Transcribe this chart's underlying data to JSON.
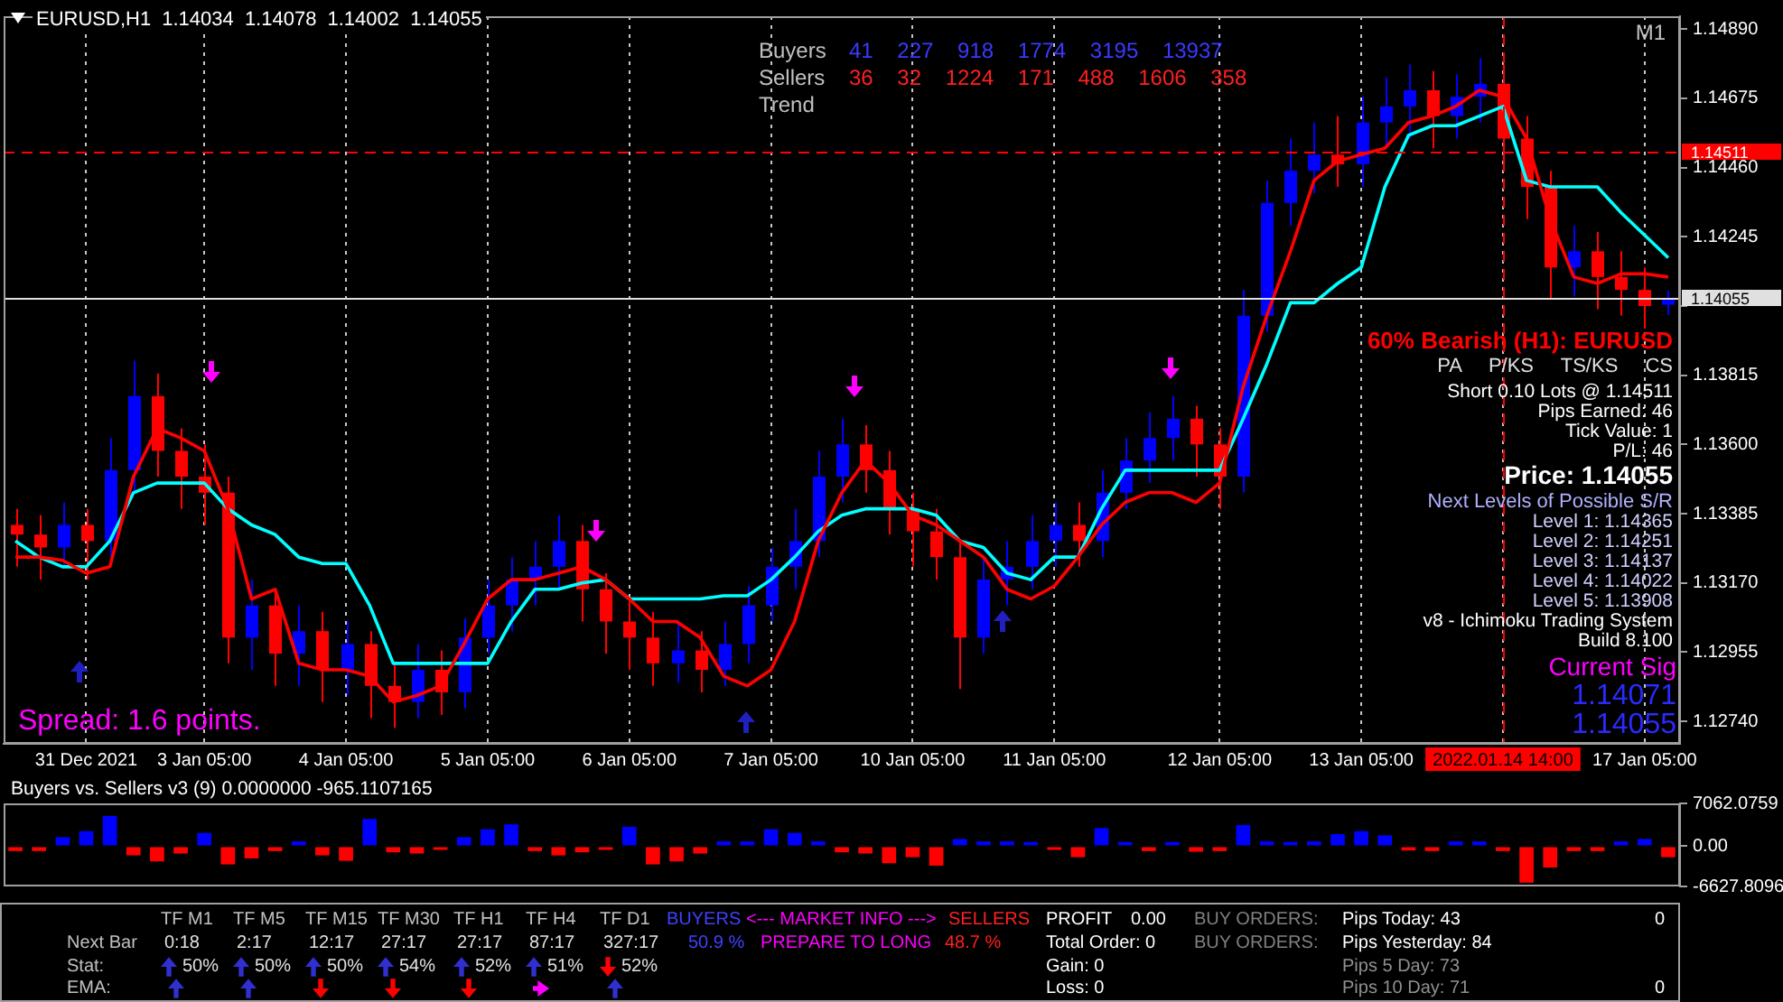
{
  "chart_data": [
    {
      "type": "candlestick",
      "title": "EURUSD,H1 1.14034 1.14078 1.14002 1.14055",
      "categories": [
        null,
        null,
        null,
        "31 Dec 2021",
        null,
        null,
        null,
        null,
        "3 Jan 05:00",
        null,
        null,
        null,
        null,
        null,
        "4 Jan 05:00",
        null,
        null,
        null,
        null,
        null,
        "5 Jan 05:00",
        null,
        null,
        null,
        null,
        null,
        "6 Jan 05:00",
        null,
        null,
        null,
        null,
        null,
        "7 Jan 05:00",
        null,
        null,
        null,
        null,
        null,
        "10 Jan 05:00",
        null,
        null,
        null,
        null,
        null,
        "11 Jan 05:00",
        null,
        null,
        null,
        null,
        null,
        null,
        "12 Jan 05:00",
        null,
        null,
        null,
        null,
        null,
        "13 Jan 05:00",
        null,
        null,
        null,
        null,
        null,
        "2022.01.14 14:00",
        null,
        null,
        null,
        null,
        null,
        "17 Jan 05:00",
        null
      ],
      "ohlc": [
        [
          1.1335,
          1.134,
          1.1322,
          1.1332
        ],
        [
          1.1332,
          1.1338,
          1.1318,
          1.1328
        ],
        [
          1.1328,
          1.1342,
          1.1322,
          1.1335
        ],
        [
          1.1335,
          1.134,
          1.1318,
          1.133
        ],
        [
          1.133,
          1.1362,
          1.1325,
          1.1352
        ],
        [
          1.1352,
          1.1386,
          1.1345,
          1.1375
        ],
        [
          1.1375,
          1.1382,
          1.135,
          1.1358
        ],
        [
          1.1358,
          1.1365,
          1.134,
          1.135
        ],
        [
          1.135,
          1.136,
          1.1335,
          1.1345
        ],
        [
          1.1345,
          1.135,
          1.1292,
          1.13
        ],
        [
          1.13,
          1.1318,
          1.129,
          1.131
        ],
        [
          1.131,
          1.1315,
          1.1285,
          1.1295
        ],
        [
          1.1295,
          1.131,
          1.1285,
          1.1302
        ],
        [
          1.1302,
          1.1308,
          1.128,
          1.129
        ],
        [
          1.129,
          1.1305,
          1.1282,
          1.1298
        ],
        [
          1.1298,
          1.1302,
          1.1275,
          1.1285
        ],
        [
          1.1285,
          1.1292,
          1.1272,
          1.128
        ],
        [
          1.128,
          1.1298,
          1.1275,
          1.129
        ],
        [
          1.129,
          1.1296,
          1.1276,
          1.1283
        ],
        [
          1.1283,
          1.1306,
          1.1278,
          1.13
        ],
        [
          1.13,
          1.1318,
          1.1295,
          1.131
        ],
        [
          1.131,
          1.1325,
          1.1302,
          1.1318
        ],
        [
          1.1318,
          1.133,
          1.131,
          1.1322
        ],
        [
          1.1322,
          1.1338,
          1.1315,
          1.133
        ],
        [
          1.133,
          1.1335,
          1.1305,
          1.1315
        ],
        [
          1.1315,
          1.132,
          1.1295,
          1.1305
        ],
        [
          1.1305,
          1.1312,
          1.129,
          1.13
        ],
        [
          1.13,
          1.1308,
          1.1285,
          1.1292
        ],
        [
          1.1292,
          1.1305,
          1.1286,
          1.1296
        ],
        [
          1.1296,
          1.1302,
          1.1283,
          1.129
        ],
        [
          1.129,
          1.1305,
          1.1285,
          1.1298
        ],
        [
          1.1298,
          1.1316,
          1.1292,
          1.131
        ],
        [
          1.131,
          1.1328,
          1.1305,
          1.1322
        ],
        [
          1.1322,
          1.134,
          1.1315,
          1.133
        ],
        [
          1.133,
          1.1358,
          1.1325,
          1.135
        ],
        [
          1.135,
          1.1368,
          1.1342,
          1.136
        ],
        [
          1.136,
          1.1366,
          1.1345,
          1.1352
        ],
        [
          1.1352,
          1.1358,
          1.1332,
          1.134
        ],
        [
          1.134,
          1.1345,
          1.1322,
          1.1333
        ],
        [
          1.1333,
          1.134,
          1.1318,
          1.1325
        ],
        [
          1.1325,
          1.133,
          1.1284,
          1.13
        ],
        [
          1.13,
          1.1325,
          1.1295,
          1.1318
        ],
        [
          1.1318,
          1.133,
          1.131,
          1.1322
        ],
        [
          1.1322,
          1.1338,
          1.1315,
          1.133
        ],
        [
          1.133,
          1.1342,
          1.1322,
          1.1335
        ],
        [
          1.1335,
          1.1342,
          1.1322,
          1.133
        ],
        [
          1.133,
          1.1352,
          1.1325,
          1.1345
        ],
        [
          1.1345,
          1.1362,
          1.134,
          1.1355
        ],
        [
          1.1355,
          1.137,
          1.1348,
          1.1362
        ],
        [
          1.1362,
          1.1375,
          1.1355,
          1.1368
        ],
        [
          1.1368,
          1.1372,
          1.135,
          1.136
        ],
        [
          1.136,
          1.1365,
          1.134,
          1.135
        ],
        [
          1.135,
          1.1408,
          1.1345,
          1.14
        ],
        [
          1.14,
          1.1442,
          1.1395,
          1.1435
        ],
        [
          1.1435,
          1.1455,
          1.1428,
          1.1445
        ],
        [
          1.1445,
          1.146,
          1.1438,
          1.145
        ],
        [
          1.145,
          1.1462,
          1.144,
          1.1447
        ],
        [
          1.1447,
          1.1468,
          1.144,
          1.146
        ],
        [
          1.146,
          1.1474,
          1.1452,
          1.1465
        ],
        [
          1.1465,
          1.1478,
          1.1455,
          1.147
        ],
        [
          1.147,
          1.1476,
          1.1452,
          1.1462
        ],
        [
          1.1462,
          1.1475,
          1.1455,
          1.1468
        ],
        [
          1.1468,
          1.148,
          1.146,
          1.1472
        ],
        [
          1.1472,
          1.1478,
          1.1448,
          1.1455
        ],
        [
          1.1455,
          1.1462,
          1.143,
          1.144
        ],
        [
          1.144,
          1.1445,
          1.1405,
          1.1415
        ],
        [
          1.1415,
          1.1428,
          1.1406,
          1.142
        ],
        [
          1.142,
          1.1426,
          1.1402,
          1.1412
        ],
        [
          1.1412,
          1.142,
          1.14,
          1.1408
        ],
        [
          1.1408,
          1.1415,
          1.1396,
          1.1403
        ],
        [
          1.14034,
          1.14078,
          1.14002,
          1.14055
        ]
      ],
      "colors": [
        "#ff0000",
        "#ff0000",
        "#0000ff",
        "#ff0000",
        "#0000ff",
        "#0000ff",
        "#ff0000",
        "#ff0000",
        "#ff0000",
        "#ff0000",
        "#0000ff",
        "#ff0000",
        "#0000ff",
        "#ff0000",
        "#0000ff",
        "#ff0000",
        "#ff0000",
        "#0000ff",
        "#ff0000",
        "#0000ff",
        "#0000ff",
        "#0000ff",
        "#0000ff",
        "#0000ff",
        "#ff0000",
        "#ff0000",
        "#ff0000",
        "#ff0000",
        "#0000ff",
        "#ff0000",
        "#0000ff",
        "#0000ff",
        "#0000ff",
        "#0000ff",
        "#0000ff",
        "#0000ff",
        "#ff0000",
        "#ff0000",
        "#ff0000",
        "#ff0000",
        "#ff0000",
        "#0000ff",
        "#0000ff",
        "#0000ff",
        "#0000ff",
        "#ff0000",
        "#0000ff",
        "#0000ff",
        "#0000ff",
        "#0000ff",
        "#ff0000",
        "#ff0000",
        "#0000ff",
        "#0000ff",
        "#0000ff",
        "#0000ff",
        "#ff0000",
        "#0000ff",
        "#0000ff",
        "#0000ff",
        "#ff0000",
        "#0000ff",
        "#0000ff",
        "#ff0000",
        "#ff0000",
        "#ff0000",
        "#0000ff",
        "#ff0000",
        "#ff0000",
        "#ff0000",
        "#0000ff"
      ],
      "series": [
        {
          "type": "line",
          "color": "#ff0000",
          "values": [
            1.1325,
            1.1325,
            1.1324,
            1.132,
            1.1322,
            1.135,
            1.1365,
            1.1362,
            1.1358,
            1.134,
            1.1312,
            1.1315,
            1.1292,
            1.129,
            1.129,
            1.1288,
            1.128,
            1.1282,
            1.1285,
            1.1298,
            1.1312,
            1.1318,
            1.1318,
            1.132,
            1.1322,
            1.1318,
            1.1312,
            1.1305,
            1.1305,
            1.13,
            1.1288,
            1.1285,
            1.129,
            1.1305,
            1.133,
            1.1345,
            1.1355,
            1.1348,
            1.1338,
            1.1335,
            1.133,
            1.1325,
            1.1315,
            1.1312,
            1.1316,
            1.1325,
            1.1335,
            1.1342,
            1.1345,
            1.1345,
            1.1342,
            1.1348,
            1.1378,
            1.14,
            1.142,
            1.1442,
            1.1448,
            1.145,
            1.1452,
            1.146,
            1.1462,
            1.1465,
            1.147,
            1.1468,
            1.1455,
            1.143,
            1.1412,
            1.141,
            1.1413,
            1.1413,
            1.1412
          ]
        },
        {
          "type": "line",
          "color": "#00ffff",
          "values": [
            1.133,
            1.1325,
            1.1322,
            1.1322,
            1.133,
            1.1345,
            1.1348,
            1.1348,
            1.1348,
            1.134,
            1.1335,
            1.1332,
            1.1325,
            1.1323,
            1.1323,
            1.131,
            1.1292,
            1.1292,
            1.1292,
            1.1292,
            1.1292,
            1.1305,
            1.1315,
            1.1315,
            1.1317,
            1.1318,
            1.1312,
            1.1312,
            1.1312,
            1.1312,
            1.1313,
            1.1313,
            1.1318,
            1.1325,
            1.1333,
            1.1338,
            1.134,
            1.134,
            1.134,
            1.1338,
            1.133,
            1.1328,
            1.132,
            1.1318,
            1.1325,
            1.1325,
            1.134,
            1.1352,
            1.1352,
            1.1352,
            1.1352,
            1.1352,
            1.1368,
            1.1385,
            1.1404,
            1.1404,
            1.141,
            1.1415,
            1.144,
            1.1456,
            1.1459,
            1.1459,
            1.1462,
            1.1465,
            1.1442,
            1.144,
            1.144,
            1.144,
            1.1432,
            1.1425,
            1.1418
          ]
        }
      ],
      "ylim": [
        1.1267,
        1.1493
      ],
      "yticks": [
        {
          "value": 1.1489,
          "label": "1.14890"
        },
        1.14675,
        {
          "value": 1.1446,
          "label": "1.14460"
        },
        1.14245,
        {
          "value": 1.1403,
          "label": null
        },
        1.13815,
        {
          "value": 1.136,
          "label": "1.13600"
        },
        1.13385,
        {
          "value": 1.1317,
          "label": "1.13170"
        },
        1.12955,
        {
          "value": 1.1274,
          "label": "1.12740"
        }
      ],
      "grid": "x",
      "ref_lines": [
        {
          "axis": "y",
          "value": 1.14511,
          "label": "1.14511",
          "color": "#ff0000",
          "line_style": "dashed"
        },
        {
          "axis": "y",
          "value": 1.14055,
          "label": "1.14055",
          "color": "#e0e0e0",
          "line_style": "solid"
        },
        {
          "axis": "x",
          "value": "2022.01.14 14:00",
          "color": "#ff0000",
          "line_style": "dashed"
        }
      ],
      "annotations": [
        "Spread: 1.6 points.",
        "M1",
        "Buyers",
        "41 227 918 1774 3195 13937",
        "Sellers",
        "36 32 1224 171 488 1606 358",
        "Trend",
        "60% Bearish (H1): EURUSD",
        "PA P/KS TS/KS CS",
        "Short 0.10 Lots @ 1.14511",
        "Pips Earned: 46",
        "Tick Value: 1",
        "P/L: 46",
        "Price: 1.14055",
        "Next Levels of Possible S/R",
        "Level 1: 1.14365",
        "Level 2: 1.14251",
        "Level 3: 1.14137",
        "Level 4: 1.14022",
        "Level 5: 1.13908",
        "v8 - Ichimoku Trading System",
        "Build 8.100",
        "Current Sig",
        "1.14071",
        "1.14055"
      ]
    },
    {
      "type": "bar",
      "title": "Buyers vs. Sellers v3 (9) 0.0000000 -965.1107165",
      "categories": [
        null,
        null,
        null,
        null,
        null,
        null,
        null,
        null,
        null,
        null,
        null,
        null,
        null,
        null,
        null,
        null,
        null,
        null,
        null,
        null,
        null,
        null,
        null,
        null,
        null,
        null,
        null,
        null,
        null,
        null,
        null,
        null,
        null,
        null,
        null,
        null,
        null,
        null,
        null,
        null,
        null,
        null,
        null,
        null,
        null,
        null,
        null,
        null,
        null,
        null,
        null,
        null,
        null,
        null,
        null,
        null,
        null,
        null,
        null,
        null,
        null,
        null,
        null,
        null,
        null,
        null,
        null,
        null,
        null,
        null,
        null
      ],
      "values": [
        -800,
        -800,
        1500,
        2500,
        5000,
        -1500,
        -2500,
        -1200,
        2200,
        -3000,
        -2000,
        -800,
        800,
        -1500,
        -2400,
        4500,
        -1000,
        -1200,
        -600,
        1500,
        2800,
        3600,
        -800,
        -1500,
        -1000,
        -600,
        3200,
        -3000,
        -2500,
        -1200,
        800,
        800,
        2800,
        2200,
        800,
        -1000,
        -1200,
        -2800,
        -1800,
        -3200,
        1200,
        800,
        800,
        700,
        -600,
        -1800,
        3000,
        700,
        -800,
        700,
        -900,
        -800,
        3500,
        800,
        700,
        800,
        2000,
        2500,
        1800,
        -700,
        -800,
        800,
        800,
        -800,
        -6000,
        -3500,
        -800,
        -800,
        800,
        1200,
        -1800
      ],
      "colors": [
        "#ff0000",
        "#ff0000",
        "#0000ff",
        "#0000ff",
        "#0000ff",
        "#ff0000",
        "#ff0000",
        "#ff0000",
        "#0000ff",
        "#ff0000",
        "#ff0000",
        "#ff0000",
        "#0000ff",
        "#ff0000",
        "#ff0000",
        "#0000ff",
        "#ff0000",
        "#ff0000",
        "#ff0000",
        "#0000ff",
        "#0000ff",
        "#0000ff",
        "#ff0000",
        "#ff0000",
        "#ff0000",
        "#ff0000",
        "#0000ff",
        "#ff0000",
        "#ff0000",
        "#ff0000",
        "#0000ff",
        "#0000ff",
        "#0000ff",
        "#0000ff",
        "#0000ff",
        "#ff0000",
        "#ff0000",
        "#ff0000",
        "#ff0000",
        "#ff0000",
        "#0000ff",
        "#0000ff",
        "#0000ff",
        "#0000ff",
        "#ff0000",
        "#ff0000",
        "#0000ff",
        "#0000ff",
        "#ff0000",
        "#0000ff",
        "#ff0000",
        "#ff0000",
        "#0000ff",
        "#0000ff",
        "#0000ff",
        "#0000ff",
        "#0000ff",
        "#0000ff",
        "#0000ff",
        "#ff0000",
        "#ff0000",
        "#0000ff",
        "#0000ff",
        "#ff0000",
        "#ff0000",
        "#ff0000",
        "#ff0000",
        "#ff0000",
        "#0000ff",
        "#0000ff",
        "#ff0000"
      ],
      "ylim": [
        -6627.8096,
        7062.0759
      ],
      "yticks": [
        7062.0759,
        {
          "value": 0,
          "label": "0.00"
        },
        -6627.8096
      ],
      "tick_labels": "y"
    },
    {
      "type": "other",
      "annotations": [
        "TF M1",
        "TF M5",
        "TF M15",
        "TF M30",
        "TF H1",
        "TF H4",
        "TF D1",
        "Next Bar",
        "0:18",
        "2:17",
        "12:17",
        "27:17",
        "27:17",
        "87:17",
        "327:17",
        "Stat:",
        "50%",
        "50%",
        "50%",
        "54%",
        "52%",
        "51%",
        "52%",
        "EMA:",
        "BUYERS",
        "<--- MARKET INFO --->",
        "SELLERS",
        "50.9 %",
        "PREPARE TO LONG",
        "48.7 %",
        "PROFIT",
        "0.00",
        "Total Order: 0",
        "Gain: 0",
        "Loss: 0",
        "BUY ORDERS:",
        "BUY ORDERS:",
        "Pips Today: 43",
        "Pips Yesterday: 84",
        "Pips 5 Day: 73",
        "Pips 10 Day: 71",
        "0",
        "0"
      ]
    }
  ]
}
